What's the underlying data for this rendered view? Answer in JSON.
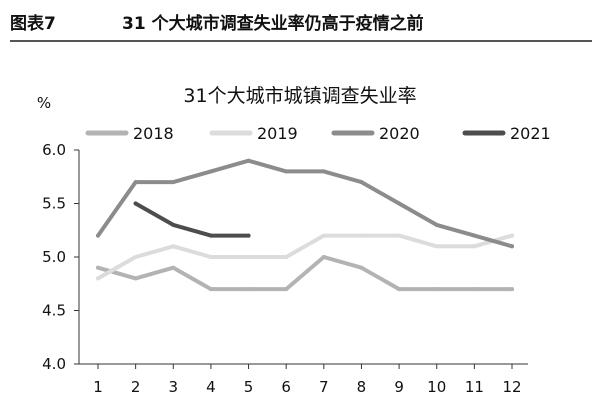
{
  "figure": {
    "label": "图表7",
    "caption": "31 个大城市调查失业率仍高于疫情之前"
  },
  "chart_data": {
    "type": "line",
    "title": "31个大城市城镇调查失业率",
    "ylabel": "%",
    "xlabel": "",
    "x": [
      1,
      2,
      3,
      4,
      5,
      6,
      7,
      8,
      9,
      10,
      11,
      12
    ],
    "x_tick_labels": [
      "1",
      "2",
      "3",
      "4",
      "5",
      "6",
      "7",
      "8",
      "9",
      "10",
      "11",
      "12"
    ],
    "ylim": [
      4.0,
      6.0
    ],
    "y_ticks": [
      4.0,
      4.5,
      5.0,
      5.5,
      6.0
    ],
    "y_tick_labels": [
      "4.0",
      "4.5",
      "5.0",
      "5.5",
      "6.0"
    ],
    "grid": false,
    "legend_position": "top",
    "series": [
      {
        "name": "2018",
        "color": "#b3b3b3",
        "values": [
          4.9,
          4.8,
          4.9,
          4.7,
          4.7,
          4.7,
          5.0,
          4.9,
          4.7,
          4.7,
          4.7,
          4.7
        ]
      },
      {
        "name": "2019",
        "color": "#dcdcdc",
        "values": [
          4.8,
          5.0,
          5.1,
          5.0,
          5.0,
          5.0,
          5.2,
          5.2,
          5.2,
          5.1,
          5.1,
          5.2
        ]
      },
      {
        "name": "2020",
        "color": "#8c8c8c",
        "values": [
          5.2,
          5.7,
          5.7,
          5.8,
          5.9,
          5.8,
          5.8,
          5.7,
          5.5,
          5.3,
          5.2,
          5.1
        ]
      },
      {
        "name": "2021",
        "color": "#4d4d4d",
        "values": [
          null,
          5.5,
          5.3,
          5.2,
          5.2,
          null,
          null,
          null,
          null,
          null,
          null,
          null
        ]
      }
    ]
  }
}
